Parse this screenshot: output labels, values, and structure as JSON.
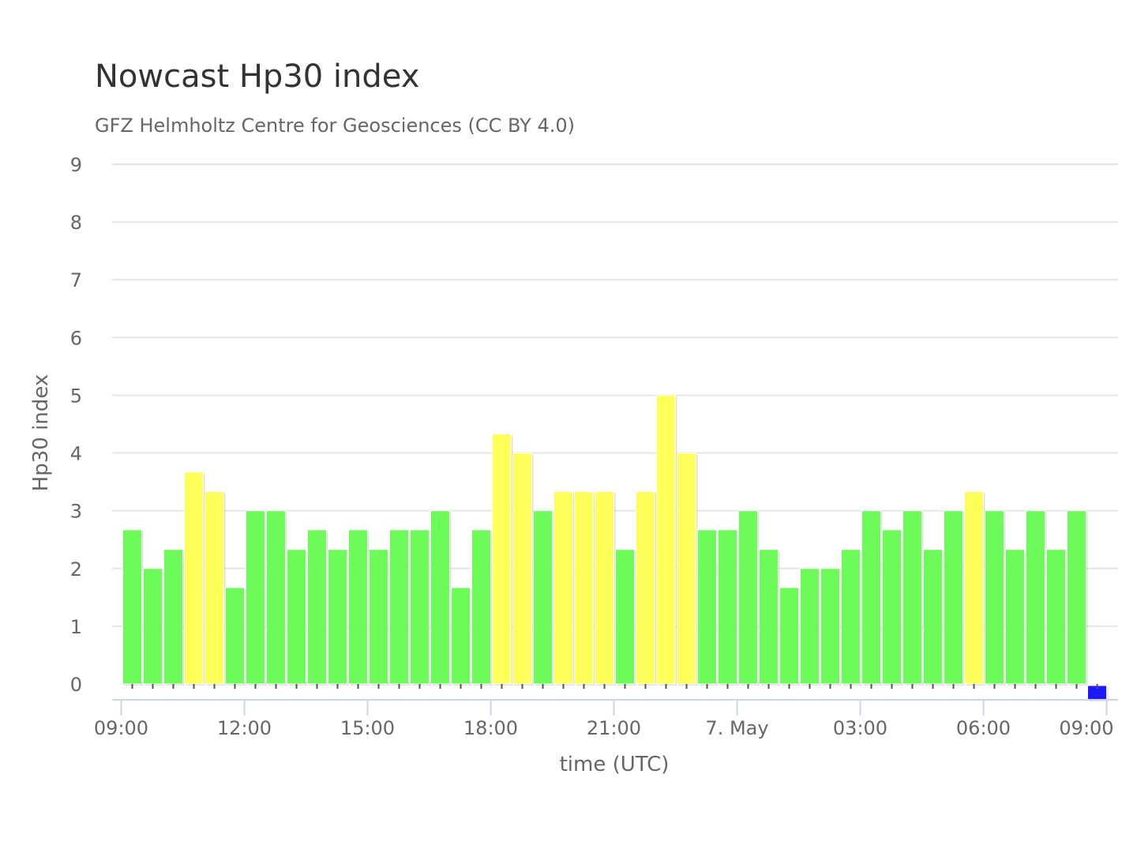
{
  "chart_data": {
    "type": "bar",
    "title": "Nowcast Hp30 index",
    "subtitle": "GFZ Helmholtz Centre for Geosciences (CC BY 4.0)",
    "xlabel": "time (UTC)",
    "ylabel": "Hp30 index",
    "ylim": [
      0,
      9
    ],
    "yticks": [
      0,
      1,
      2,
      3,
      4,
      5,
      6,
      7,
      8,
      9
    ],
    "xticks": [
      {
        "label": "09:00",
        "slot": 0
      },
      {
        "label": "12:00",
        "slot": 6
      },
      {
        "label": "15:00",
        "slot": 12
      },
      {
        "label": "18:00",
        "slot": 18
      },
      {
        "label": "21:00",
        "slot": 24
      },
      {
        "label": "7. May",
        "slot": 30
      },
      {
        "label": "03:00",
        "slot": 36
      },
      {
        "label": "06:00",
        "slot": 42
      },
      {
        "label": "09:00",
        "slot": 48
      }
    ],
    "interval_minutes": 30,
    "grid": true,
    "legend": "none",
    "colors": {
      "low": "#6dfb5a",
      "elevated": "#ffff5a",
      "latest": "#1a1aff",
      "grid": "#e6e6e6",
      "axis": "#ccd6eb"
    },
    "values": [
      2.67,
      2.0,
      2.33,
      3.67,
      3.33,
      1.67,
      3.0,
      3.0,
      2.33,
      2.67,
      2.33,
      2.67,
      2.33,
      2.67,
      2.67,
      3.0,
      1.67,
      2.67,
      4.33,
      4.0,
      3.0,
      3.33,
      3.33,
      3.33,
      2.33,
      3.33,
      5.0,
      4.0,
      2.67,
      2.67,
      3.0,
      2.33,
      1.67,
      2.0,
      2.0,
      2.33,
      3.0,
      2.67,
      3.0,
      2.33,
      3.0,
      3.33,
      3.0,
      2.33,
      3.0,
      2.33,
      3.0,
      0.0
    ]
  }
}
